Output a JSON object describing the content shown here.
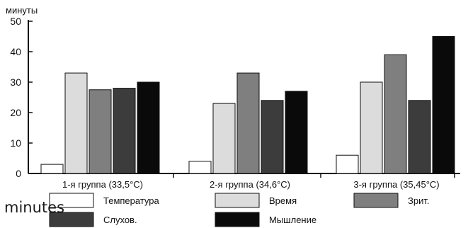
{
  "chart_data": {
    "type": "bar",
    "ylabel": "минуты",
    "ylim": [
      0,
      50
    ],
    "yticks": [
      0,
      10,
      20,
      30,
      40,
      50
    ],
    "categories": [
      "1-я группа (33,5°C)",
      "2-я группа (34,6°C)",
      "3-я группа (35,45°C)"
    ],
    "series": [
      {
        "name": "Температура",
        "values": [
          3,
          4,
          6
        ],
        "color": "#ffffff"
      },
      {
        "name": "Время",
        "values": [
          33,
          23,
          30
        ],
        "color": "#dcdcdc"
      },
      {
        "name": "Зрит.",
        "values": [
          27.5,
          33,
          39
        ],
        "color": "#7f7f7f"
      },
      {
        "name": "Слухов.",
        "values": [
          28,
          24,
          24
        ],
        "color": "#3c3c3c"
      },
      {
        "name": "Мышление",
        "values": [
          30,
          27,
          45
        ],
        "color": "#0a0a0a"
      }
    ],
    "legend_position": "bottom",
    "grid": false
  },
  "overlay_caption": "minutes"
}
